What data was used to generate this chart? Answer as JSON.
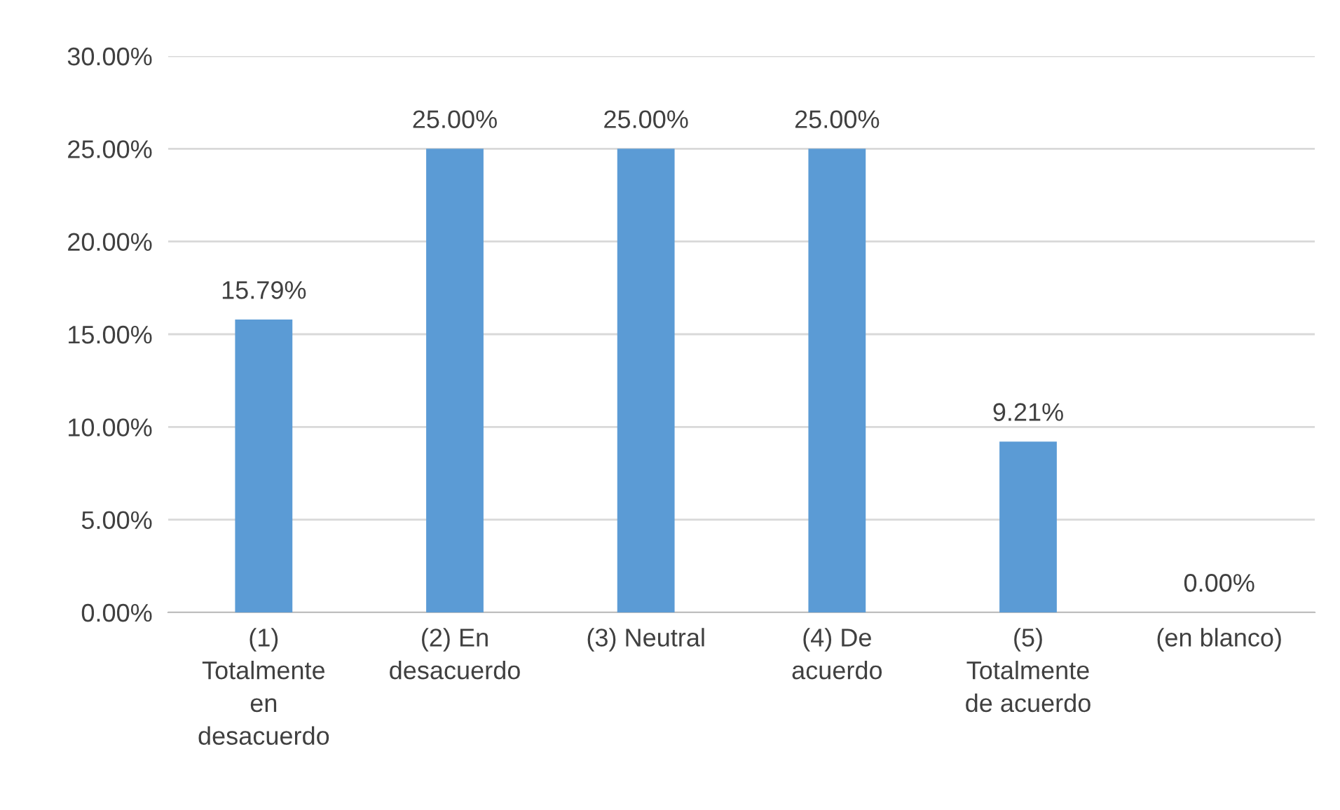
{
  "chart_data": {
    "type": "bar",
    "categories": [
      "(1)\nTotalmente\nen\ndesacuerdo",
      "(2) En\ndesacuerdo",
      "(3) Neutral",
      "(4) De\nacuerdo",
      "(5)\nTotalmente\nde acuerdo",
      "(en blanco)"
    ],
    "values": [
      15.79,
      25.0,
      25.0,
      25.0,
      9.21,
      0.0
    ],
    "value_labels": [
      "15.79%",
      "25.00%",
      "25.00%",
      "25.00%",
      "9.21%",
      "0.00%"
    ],
    "color": "#5b9bd5",
    "ylim": [
      0,
      30
    ],
    "yticks": [
      {
        "value": 0,
        "label": "0.00%"
      },
      {
        "value": 5,
        "label": "5.00%"
      },
      {
        "value": 10,
        "label": "10.00%"
      },
      {
        "value": 15,
        "label": "15.00%"
      },
      {
        "value": 20,
        "label": "20.00%"
      },
      {
        "value": 25,
        "label": "25.00%"
      },
      {
        "value": 30,
        "label": "30.00%"
      }
    ],
    "grid": "y"
  }
}
